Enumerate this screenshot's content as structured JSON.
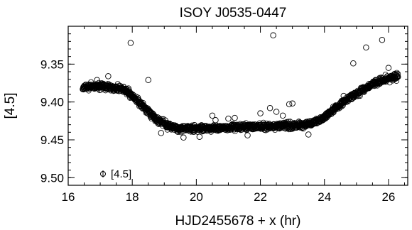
{
  "chart_data": {
    "type": "scatter",
    "title": "ISOY J0535-0447",
    "xlabel": "HJD2455678 + x (hr)",
    "ylabel": "[4.5]",
    "xlim": [
      16,
      26.6
    ],
    "ylim": [
      9.51,
      9.3
    ],
    "y_inverted": true,
    "xticks": [
      16,
      18,
      20,
      22,
      24,
      26
    ],
    "yticks": [
      9.35,
      9.4,
      9.45,
      9.5
    ],
    "ytick_labels": [
      "9.35",
      "9.40",
      "9.45",
      "9.50"
    ],
    "grid": false,
    "marker": "open-circle",
    "legend": {
      "position": "bottom-left",
      "entries": [
        "[4.5]"
      ]
    },
    "series": [
      {
        "name": "[4.5]",
        "trend": [
          [
            16.45,
            9.381
          ],
          [
            16.8,
            9.379
          ],
          [
            17.2,
            9.38
          ],
          [
            17.6,
            9.382
          ],
          [
            17.9,
            9.388
          ],
          [
            18.2,
            9.4
          ],
          [
            18.5,
            9.413
          ],
          [
            18.8,
            9.424
          ],
          [
            19.1,
            9.431
          ],
          [
            19.4,
            9.435
          ],
          [
            19.8,
            9.435
          ],
          [
            20.5,
            9.434
          ],
          [
            21.5,
            9.433
          ],
          [
            22.5,
            9.432
          ],
          [
            23.2,
            9.431
          ],
          [
            23.6,
            9.429
          ],
          [
            24.0,
            9.42
          ],
          [
            24.4,
            9.406
          ],
          [
            24.8,
            9.394
          ],
          [
            25.2,
            9.384
          ],
          [
            25.6,
            9.375
          ],
          [
            26.0,
            9.368
          ],
          [
            26.3,
            9.367
          ]
        ],
        "outliers": [
          [
            16.9,
            9.371
          ],
          [
            17.25,
            9.366
          ],
          [
            17.95,
            9.322
          ],
          [
            18.5,
            9.371
          ],
          [
            20.5,
            9.418
          ],
          [
            20.6,
            9.424
          ],
          [
            21.0,
            9.422
          ],
          [
            21.2,
            9.421
          ],
          [
            22.0,
            9.415
          ],
          [
            22.3,
            9.408
          ],
          [
            22.4,
            9.312
          ],
          [
            22.5,
            9.413
          ],
          [
            22.7,
            9.418
          ],
          [
            22.9,
            9.403
          ],
          [
            23.0,
            9.402
          ],
          [
            23.2,
            9.426
          ],
          [
            24.9,
            9.349
          ],
          [
            25.3,
            9.328
          ],
          [
            25.8,
            9.318
          ],
          [
            26.0,
            9.355
          ],
          [
            19.6,
            9.447
          ],
          [
            20.1,
            9.446
          ],
          [
            21.6,
            9.444
          ],
          [
            23.5,
            9.443
          ],
          [
            18.9,
            9.441
          ],
          [
            24.6,
            9.392
          ]
        ]
      }
    ]
  }
}
